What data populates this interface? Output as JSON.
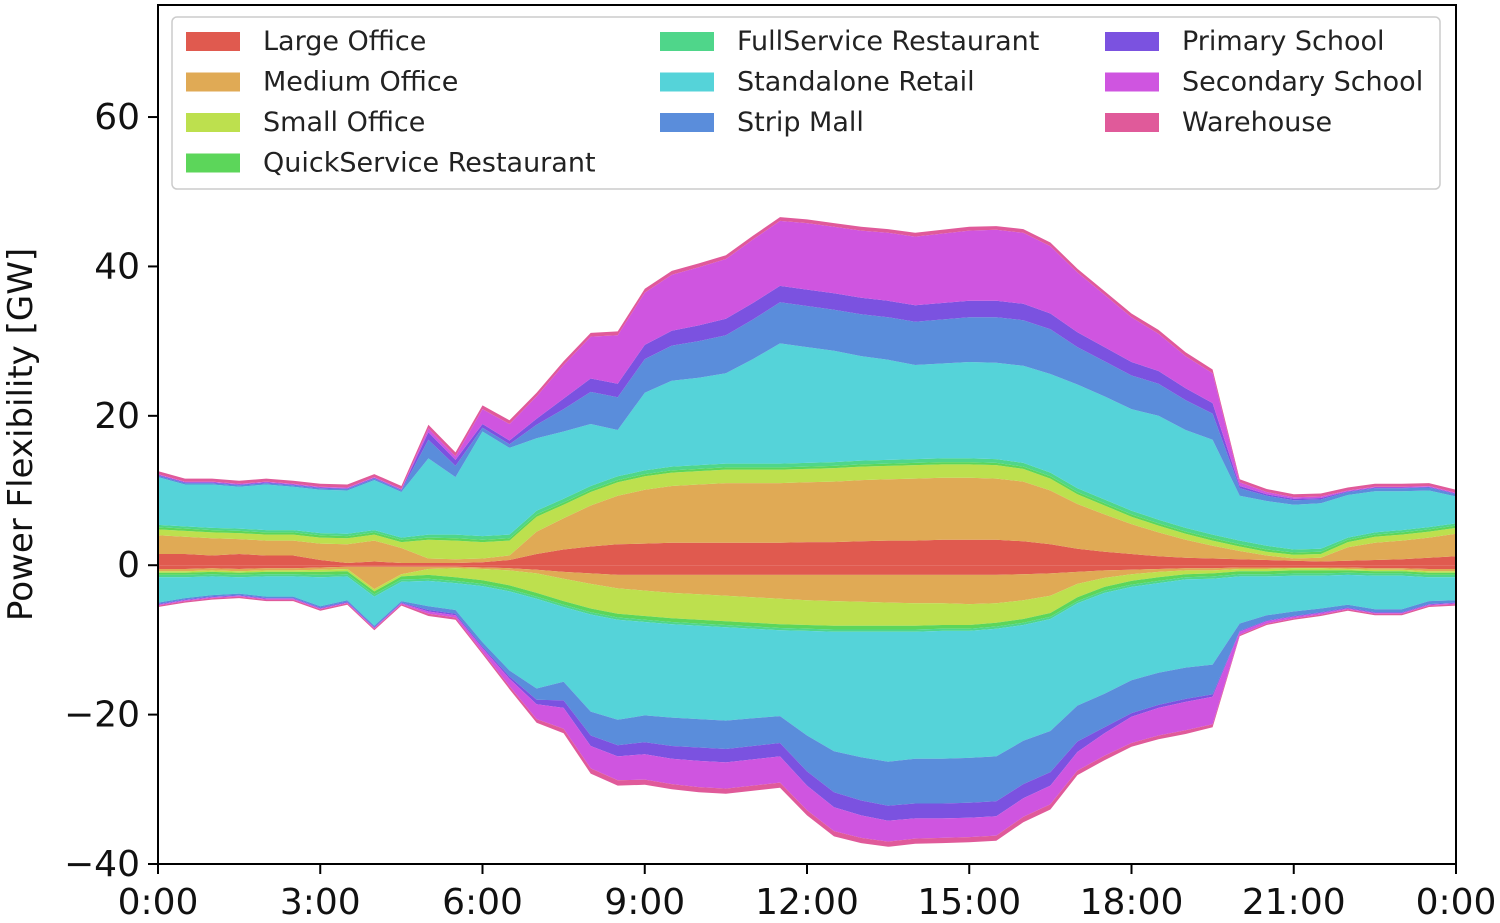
{
  "chart_data": {
    "type": "area",
    "title": "",
    "xlabel": "",
    "ylabel": "Power Flexibility [GW]",
    "xlim": [
      0,
      24
    ],
    "ylim": [
      -40,
      75
    ],
    "x_ticks": [
      0,
      3,
      6,
      9,
      12,
      15,
      18,
      21,
      24
    ],
    "x_tick_labels": [
      "0:00",
      "3:00",
      "6:00",
      "9:00",
      "12:00",
      "15:00",
      "18:00",
      "21:00",
      "0:00"
    ],
    "y_ticks": [
      -40,
      -20,
      0,
      20,
      40,
      60
    ],
    "y_tick_labels": [
      "−40",
      "−20",
      "0",
      "20",
      "40",
      "60"
    ],
    "grid": false,
    "legend_position": "top",
    "x": [
      0,
      0.5,
      1,
      1.5,
      2,
      2.5,
      3,
      3.5,
      4,
      4.5,
      5,
      5.5,
      6,
      6.5,
      7,
      7.5,
      8,
      8.5,
      9,
      9.5,
      10,
      10.5,
      11,
      11.5,
      12,
      12.5,
      13,
      13.5,
      14,
      14.5,
      15,
      15.5,
      16,
      16.5,
      17,
      17.5,
      18,
      18.5,
      19,
      19.5,
      20,
      20.5,
      21,
      21.5,
      22,
      22.5,
      23,
      23.5,
      24
    ],
    "series": [
      {
        "name": "Large Office",
        "color": "#e05a4f",
        "up": [
          1.5,
          1.5,
          1.3,
          1.5,
          1.3,
          1.3,
          0.7,
          0.3,
          0.5,
          0.3,
          0.3,
          0.3,
          0.4,
          0.7,
          1.5,
          2.1,
          2.5,
          2.8,
          2.9,
          3.0,
          3.0,
          3.0,
          3.0,
          3.0,
          3.1,
          3.1,
          3.2,
          3.3,
          3.3,
          3.4,
          3.4,
          3.4,
          3.2,
          2.8,
          2.2,
          1.8,
          1.5,
          1.2,
          1.0,
          0.9,
          0.8,
          0.7,
          0.6,
          0.5,
          0.6,
          0.7,
          0.8,
          1.0,
          1.2
        ],
        "down": [
          0.5,
          0.5,
          0.4,
          0.5,
          0.4,
          0.4,
          0.3,
          0.2,
          0.2,
          0.2,
          0.2,
          0.2,
          0.3,
          0.4,
          0.6,
          0.9,
          1.1,
          1.3,
          1.3,
          1.3,
          1.3,
          1.3,
          1.3,
          1.3,
          1.3,
          1.3,
          1.3,
          1.3,
          1.3,
          1.3,
          1.3,
          1.3,
          1.2,
          1.1,
          0.9,
          0.7,
          0.6,
          0.5,
          0.4,
          0.4,
          0.3,
          0.3,
          0.3,
          0.3,
          0.3,
          0.4,
          0.4,
          0.5,
          0.5
        ]
      },
      {
        "name": "Medium Office",
        "color": "#e0aa55",
        "up": [
          2.5,
          2.3,
          2.3,
          2.0,
          2.0,
          2.0,
          2.2,
          2.5,
          2.8,
          2.0,
          0.6,
          0.5,
          0.5,
          0.6,
          3.0,
          4.2,
          5.5,
          6.5,
          7.2,
          7.6,
          7.8,
          8.0,
          8.0,
          8.0,
          8.0,
          8.1,
          8.2,
          8.2,
          8.3,
          8.3,
          8.3,
          8.2,
          8.0,
          7.2,
          6.0,
          5.0,
          4.0,
          3.2,
          2.4,
          1.7,
          1.1,
          0.6,
          0.3,
          0.5,
          1.8,
          2.3,
          2.5,
          2.7,
          3.0
        ],
        "down": [
          0.3,
          0.3,
          0.3,
          0.3,
          0.3,
          0.3,
          0.3,
          0.3,
          3.0,
          1.0,
          0.3,
          0.2,
          0.2,
          0.3,
          0.5,
          0.9,
          1.4,
          1.8,
          2.1,
          2.4,
          2.6,
          2.8,
          3.0,
          3.2,
          3.4,
          3.5,
          3.6,
          3.7,
          3.8,
          3.8,
          3.9,
          3.8,
          3.5,
          3.0,
          1.6,
          1.0,
          0.6,
          0.4,
          0.3,
          0.3,
          0.2,
          0.2,
          0.1,
          0.1,
          0.2,
          0.2,
          0.2,
          0.3,
          0.3
        ]
      },
      {
        "name": "Small Office",
        "color": "#bde04e",
        "up": [
          0.8,
          0.8,
          0.8,
          0.8,
          0.8,
          0.8,
          0.8,
          0.8,
          0.8,
          0.8,
          2.5,
          2.5,
          2.2,
          2.0,
          2.0,
          1.8,
          1.8,
          1.8,
          1.8,
          1.8,
          1.8,
          1.8,
          1.8,
          1.8,
          1.8,
          1.8,
          1.8,
          1.8,
          1.8,
          1.8,
          1.8,
          1.8,
          1.7,
          1.6,
          1.3,
          1.2,
          1.0,
          0.9,
          0.8,
          0.7,
          0.6,
          0.5,
          0.5,
          0.5,
          0.7,
          0.8,
          0.8,
          0.8,
          0.8
        ],
        "down": [
          0.2,
          0.2,
          0.2,
          0.2,
          0.2,
          0.2,
          0.3,
          0.3,
          0.3,
          0.3,
          0.8,
          1.2,
          1.5,
          2.0,
          2.6,
          3.0,
          3.3,
          3.4,
          3.4,
          3.4,
          3.4,
          3.4,
          3.4,
          3.4,
          3.3,
          3.3,
          3.2,
          3.1,
          3.0,
          2.9,
          2.8,
          2.6,
          2.5,
          2.3,
          1.8,
          1.2,
          0.9,
          0.7,
          0.5,
          0.4,
          0.3,
          0.3,
          0.3,
          0.3,
          0.2,
          0.2,
          0.2,
          0.2,
          0.2
        ]
      },
      {
        "name": "QuickService Restaurant",
        "color": "#5cd65a",
        "up": [
          0.3,
          0.3,
          0.3,
          0.3,
          0.3,
          0.3,
          0.3,
          0.3,
          0.3,
          0.3,
          0.3,
          0.3,
          0.3,
          0.3,
          0.3,
          0.3,
          0.3,
          0.3,
          0.3,
          0.3,
          0.3,
          0.3,
          0.3,
          0.3,
          0.3,
          0.3,
          0.3,
          0.3,
          0.3,
          0.3,
          0.3,
          0.3,
          0.3,
          0.3,
          0.3,
          0.3,
          0.3,
          0.3,
          0.3,
          0.3,
          0.3,
          0.3,
          0.3,
          0.3,
          0.3,
          0.3,
          0.3,
          0.3,
          0.3
        ],
        "down": [
          0.3,
          0.3,
          0.3,
          0.3,
          0.3,
          0.3,
          0.4,
          0.4,
          0.4,
          0.4,
          0.5,
          0.5,
          0.5,
          0.5,
          0.5,
          0.5,
          0.5,
          0.5,
          0.5,
          0.5,
          0.5,
          0.5,
          0.5,
          0.5,
          0.5,
          0.5,
          0.5,
          0.5,
          0.5,
          0.5,
          0.5,
          0.5,
          0.5,
          0.5,
          0.5,
          0.5,
          0.5,
          0.5,
          0.4,
          0.4,
          0.4,
          0.4,
          0.4,
          0.4,
          0.3,
          0.3,
          0.3,
          0.3,
          0.3
        ]
      },
      {
        "name": "FullService Restaurant",
        "color": "#4fd68a",
        "up": [
          0.3,
          0.3,
          0.3,
          0.3,
          0.3,
          0.3,
          0.3,
          0.3,
          0.3,
          0.3,
          0.4,
          0.5,
          0.5,
          0.5,
          0.5,
          0.5,
          0.5,
          0.5,
          0.5,
          0.5,
          0.5,
          0.5,
          0.5,
          0.5,
          0.5,
          0.5,
          0.5,
          0.5,
          0.5,
          0.5,
          0.5,
          0.5,
          0.5,
          0.5,
          0.5,
          0.5,
          0.5,
          0.5,
          0.5,
          0.5,
          0.5,
          0.5,
          0.4,
          0.4,
          0.3,
          0.3,
          0.3,
          0.3,
          0.3
        ],
        "down": [
          0.3,
          0.3,
          0.3,
          0.3,
          0.3,
          0.3,
          0.3,
          0.3,
          0.3,
          0.3,
          0.3,
          0.3,
          0.3,
          0.3,
          0.3,
          0.3,
          0.3,
          0.3,
          0.3,
          0.3,
          0.3,
          0.3,
          0.3,
          0.3,
          0.3,
          0.3,
          0.3,
          0.3,
          0.3,
          0.3,
          0.3,
          0.3,
          0.3,
          0.3,
          0.3,
          0.3,
          0.3,
          0.3,
          0.3,
          0.3,
          0.3,
          0.3,
          0.3,
          0.3,
          0.3,
          0.3,
          0.3,
          0.3,
          0.3
        ]
      },
      {
        "name": "Standalone Retail",
        "color": "#55d3d9",
        "up": [
          6.4,
          5.6,
          5.8,
          5.6,
          6.1,
          5.8,
          5.8,
          5.8,
          6.7,
          6.1,
          10.2,
          7.7,
          14.0,
          11.6,
          9.7,
          9.0,
          8.3,
          6.2,
          10.4,
          11.5,
          11.7,
          12.1,
          14.0,
          16.1,
          15.5,
          14.9,
          14.0,
          13.4,
          12.6,
          12.7,
          12.9,
          12.9,
          13.0,
          13.2,
          13.9,
          13.8,
          13.6,
          13.9,
          13.1,
          12.7,
          6.0,
          6.0,
          6.0,
          6.1,
          5.7,
          5.5,
          5.2,
          4.9,
          3.6
        ],
        "down": [
          3.4,
          2.8,
          2.5,
          2.2,
          2.7,
          2.7,
          3.9,
          3.2,
          3.9,
          2.6,
          3.4,
          3.6,
          7.5,
          10.6,
          12.0,
          10.0,
          13.0,
          13.4,
          12.5,
          12.5,
          12.5,
          12.5,
          12.0,
          11.5,
          14.0,
          16.0,
          16.8,
          17.4,
          17.0,
          17.1,
          17.0,
          17.1,
          15.5,
          15.0,
          13.7,
          13.5,
          12.5,
          12.0,
          11.8,
          11.5,
          6.3,
          5.2,
          4.8,
          4.4,
          4.0,
          4.5,
          4.5,
          3.2,
          3.1
        ]
      },
      {
        "name": "Strip Mall",
        "color": "#5a8ddb",
        "up": [
          0.2,
          0.2,
          0.2,
          0.2,
          0.2,
          0.2,
          0.2,
          0.2,
          0.2,
          0.2,
          2.5,
          1.5,
          0.5,
          0.5,
          1.8,
          3.0,
          4.3,
          4.4,
          4.5,
          4.7,
          4.9,
          5.1,
          5.3,
          5.5,
          5.5,
          5.5,
          5.6,
          5.7,
          5.8,
          5.9,
          6.0,
          6.1,
          6.1,
          6.0,
          5.0,
          4.7,
          4.5,
          4.3,
          4.0,
          3.5,
          1.0,
          0.7,
          0.6,
          0.5,
          0.4,
          0.4,
          0.4,
          0.4,
          0.3
        ],
        "down": [
          0.2,
          0.2,
          0.2,
          0.2,
          0.2,
          0.2,
          0.2,
          0.2,
          0.2,
          0.2,
          0.5,
          0.5,
          0.6,
          0.8,
          1.5,
          2.5,
          3.2,
          3.4,
          3.6,
          3.8,
          3.8,
          3.8,
          3.7,
          3.6,
          4.8,
          5.5,
          5.8,
          5.9,
          6.0,
          6.0,
          6.0,
          6.0,
          5.8,
          5.5,
          4.8,
          4.5,
          4.4,
          4.3,
          4.2,
          4.0,
          1.0,
          0.7,
          0.6,
          0.5,
          0.4,
          0.4,
          0.4,
          0.4,
          0.3
        ]
      },
      {
        "name": "Primary School",
        "color": "#7b52e0",
        "up": [
          0.1,
          0.1,
          0.1,
          0.1,
          0.1,
          0.1,
          0.1,
          0.1,
          0.1,
          0.1,
          1.0,
          0.8,
          0.5,
          0.5,
          0.8,
          1.4,
          1.8,
          1.8,
          1.9,
          2.0,
          2.1,
          2.2,
          2.2,
          2.2,
          2.2,
          2.2,
          2.2,
          2.2,
          2.2,
          2.2,
          2.2,
          2.2,
          2.2,
          2.1,
          2.0,
          1.9,
          1.8,
          1.7,
          1.6,
          1.4,
          0.3,
          0.2,
          0.2,
          0.2,
          0.1,
          0.1,
          0.1,
          0.1,
          0.1
        ],
        "down": [
          0.1,
          0.1,
          0.1,
          0.1,
          0.1,
          0.1,
          0.1,
          0.1,
          0.1,
          0.1,
          0.2,
          0.2,
          0.2,
          0.3,
          0.6,
          1.0,
          1.4,
          1.5,
          1.6,
          1.7,
          1.8,
          1.8,
          1.8,
          1.8,
          1.9,
          2.0,
          2.0,
          2.0,
          2.0,
          2.0,
          2.0,
          2.0,
          1.9,
          1.8,
          1.4,
          0.8,
          0.5,
          0.4,
          0.4,
          0.3,
          0.1,
          0.1,
          0.1,
          0.1,
          0.1,
          0.1,
          0.1,
          0.1,
          0.1
        ]
      },
      {
        "name": "Secondary School",
        "color": "#cf55e0",
        "up": [
          0.1,
          0.1,
          0.1,
          0.1,
          0.1,
          0.1,
          0.1,
          0.1,
          0.1,
          0.1,
          0.5,
          0.5,
          2.0,
          2.2,
          3.0,
          4.5,
          5.6,
          6.5,
          7.0,
          7.5,
          7.8,
          8.0,
          8.5,
          8.7,
          8.9,
          8.9,
          9.0,
          9.1,
          9.2,
          9.3,
          9.4,
          9.5,
          9.5,
          9.0,
          8.0,
          7.0,
          6.0,
          5.0,
          4.3,
          4.0,
          0.5,
          0.3,
          0.2,
          0.2,
          0.1,
          0.1,
          0.1,
          0.1,
          0.1
        ],
        "down": [
          0.1,
          0.1,
          0.1,
          0.1,
          0.1,
          0.1,
          0.1,
          0.1,
          0.1,
          0.1,
          0.3,
          0.3,
          0.5,
          1.0,
          2.0,
          2.8,
          3.0,
          3.2,
          3.4,
          3.4,
          3.5,
          3.5,
          3.5,
          3.5,
          3.3,
          3.2,
          3.0,
          2.8,
          2.7,
          2.6,
          2.6,
          2.6,
          2.5,
          2.5,
          2.5,
          3.0,
          3.5,
          3.7,
          3.8,
          3.7,
          0.4,
          0.3,
          0.2,
          0.2,
          0.1,
          0.1,
          0.1,
          0.1,
          0.1
        ]
      },
      {
        "name": "Warehouse",
        "color": "#e05a9a",
        "up": [
          0.4,
          0.4,
          0.4,
          0.4,
          0.4,
          0.4,
          0.4,
          0.4,
          0.4,
          0.4,
          0.5,
          0.5,
          0.5,
          0.5,
          0.5,
          0.5,
          0.5,
          0.5,
          0.5,
          0.5,
          0.5,
          0.5,
          0.5,
          0.5,
          0.5,
          0.5,
          0.5,
          0.5,
          0.5,
          0.5,
          0.5,
          0.5,
          0.5,
          0.5,
          0.5,
          0.5,
          0.5,
          0.5,
          0.5,
          0.5,
          0.4,
          0.4,
          0.4,
          0.4,
          0.4,
          0.4,
          0.4,
          0.4,
          0.4
        ],
        "down": [
          0.2,
          0.2,
          0.2,
          0.2,
          0.2,
          0.2,
          0.2,
          0.2,
          0.2,
          0.2,
          0.3,
          0.3,
          0.3,
          0.4,
          0.5,
          0.6,
          0.7,
          0.7,
          0.7,
          0.7,
          0.7,
          0.7,
          0.7,
          0.7,
          0.7,
          0.7,
          0.7,
          0.7,
          0.7,
          0.7,
          0.7,
          0.7,
          0.7,
          0.7,
          0.6,
          0.6,
          0.5,
          0.5,
          0.5,
          0.4,
          0.2,
          0.2,
          0.2,
          0.2,
          0.2,
          0.2,
          0.2,
          0.2,
          0.2
        ]
      }
    ]
  }
}
